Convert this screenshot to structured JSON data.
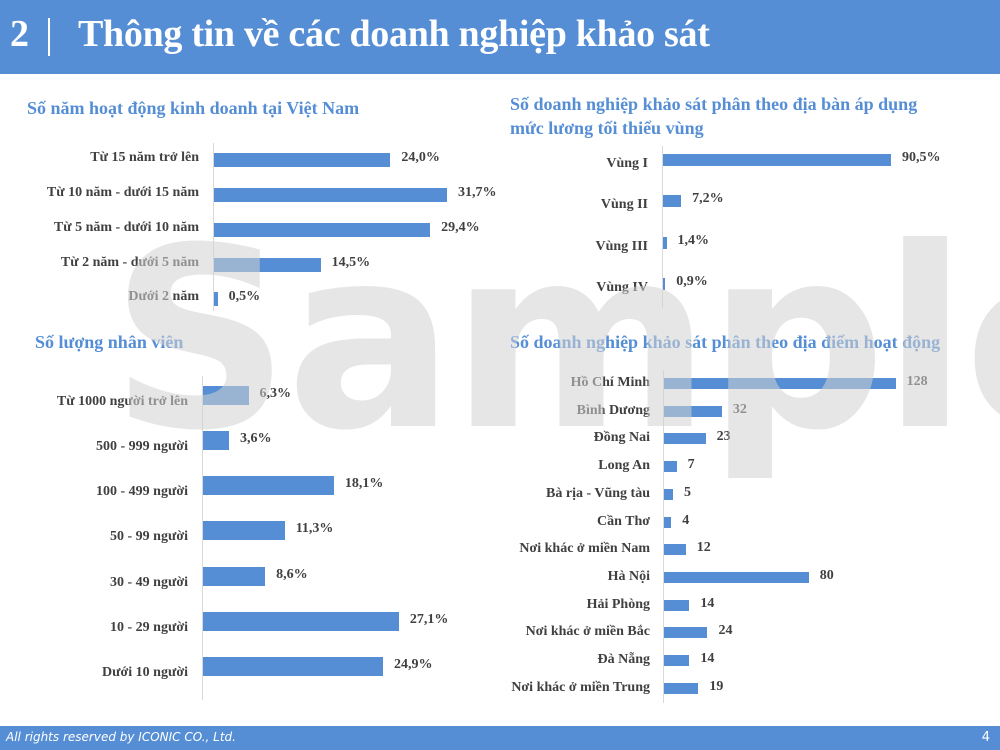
{
  "header": {
    "section_number": "2",
    "title": "Thông tin về các doanh nghiệp khảo sát"
  },
  "watermark": "Sample",
  "footer": {
    "copyright": "All rights reserved by ICONIC CO., Ltd.",
    "page_number": "4"
  },
  "colors": {
    "brand": "#558ED5",
    "bar": "#558ED5",
    "label": "#404040",
    "axis": "#D9D9D9"
  },
  "chart_data": [
    {
      "type": "bar",
      "orientation": "horizontal",
      "title": "Số năm hoạt động kinh doanh tại Việt Nam",
      "categories": [
        "Từ 15 năm trở lên",
        "Từ 10 năm - dưới 15 năm",
        "Từ 5 năm - dưới 10 năm",
        "Từ 2 năm - dưới 5 năm",
        "Dưới 2 năm"
      ],
      "values": [
        24.0,
        31.7,
        29.4,
        14.5,
        0.5
      ],
      "labels": [
        "24,0%",
        "31,7%",
        "29,4%",
        "14,5%",
        "0,5%"
      ],
      "unit": "%",
      "grid": false,
      "legend": "none"
    },
    {
      "type": "bar",
      "orientation": "horizontal",
      "title": "Số doanh nghiệp khảo sát phân theo địa bàn áp dụng mức lương tối thiểu vùng",
      "title_lines": [
        "Số doanh nghiệp khảo sát phân theo địa bàn áp dụng",
        "mức lương tối thiểu vùng"
      ],
      "categories": [
        "Vùng I",
        "Vùng II",
        "Vùng III",
        "Vùng IV"
      ],
      "values": [
        90.5,
        7.2,
        1.4,
        0.9
      ],
      "labels": [
        "90,5%",
        "7,2%",
        "1,4%",
        "0,9%"
      ],
      "unit": "%",
      "grid": false,
      "legend": "none"
    },
    {
      "type": "bar",
      "orientation": "horizontal",
      "title": "Số lượng nhân viên",
      "categories": [
        "Từ 1000 người trở lên",
        "500 - 999 người",
        "100 - 499 người",
        "50 - 99 người",
        "30 - 49 người",
        "10 - 29 người",
        "Dưới 10 người"
      ],
      "values": [
        6.3,
        3.6,
        18.1,
        11.3,
        8.6,
        27.1,
        24.9
      ],
      "labels": [
        "6,3%",
        "3,6%",
        "18,1%",
        "11,3%",
        "8,6%",
        "27,1%",
        "24,9%"
      ],
      "unit": "%",
      "grid": false,
      "legend": "none"
    },
    {
      "type": "bar",
      "orientation": "horizontal",
      "title": "Số doanh nghiệp khảo sát phân theo địa điểm hoạt động",
      "categories": [
        "Hồ Chí Minh",
        "Bình Dương",
        "Đồng Nai",
        "Long An",
        "Bà rịa - Vũng tàu",
        "Cần Thơ",
        "Nơi khác ở miền Nam",
        "Hà Nội",
        "Hải Phòng",
        "Nơi khác ở miền Bắc",
        "Đà Nẵng",
        "Nơi khác ở miền Trung"
      ],
      "values": [
        128,
        32,
        23,
        7,
        5,
        4,
        12,
        80,
        14,
        24,
        14,
        19
      ],
      "labels": [
        "128",
        "32",
        "23",
        "7",
        "5",
        "4",
        "12",
        "80",
        "14",
        "24",
        "14",
        "19"
      ],
      "unit": "doanh nghiệp",
      "grid": false,
      "legend": "none"
    }
  ]
}
